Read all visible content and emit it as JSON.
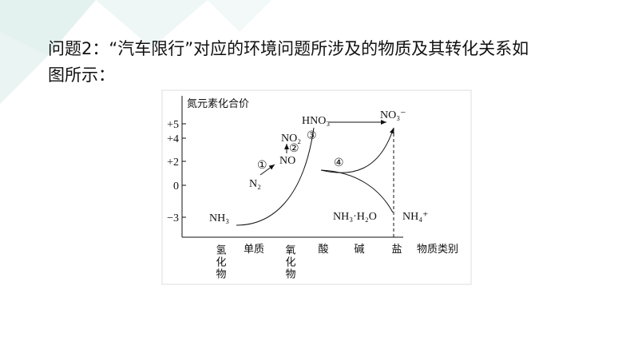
{
  "text": {
    "lines": [
      "问题2：“汽车限行”对应的环境问题所涉及的物质及其转化关系如",
      "图所示："
    ]
  },
  "diagram": {
    "y_axis_title": "氮元素化合价",
    "y_ticks": [
      "+5",
      "+4",
      "+2",
      "0",
      "−3"
    ],
    "x_labels": [
      "氢化物",
      "单质",
      "氧化物",
      "酸",
      "碱",
      "盐",
      "物质类别"
    ],
    "species": [
      "NH₃",
      "N₂",
      "NO",
      "NO₂",
      "HNO₃",
      "NO₃⁻",
      "NH₃·H₂O",
      "NH₄⁺"
    ],
    "steps": [
      "①",
      "②",
      "③",
      "④"
    ]
  }
}
